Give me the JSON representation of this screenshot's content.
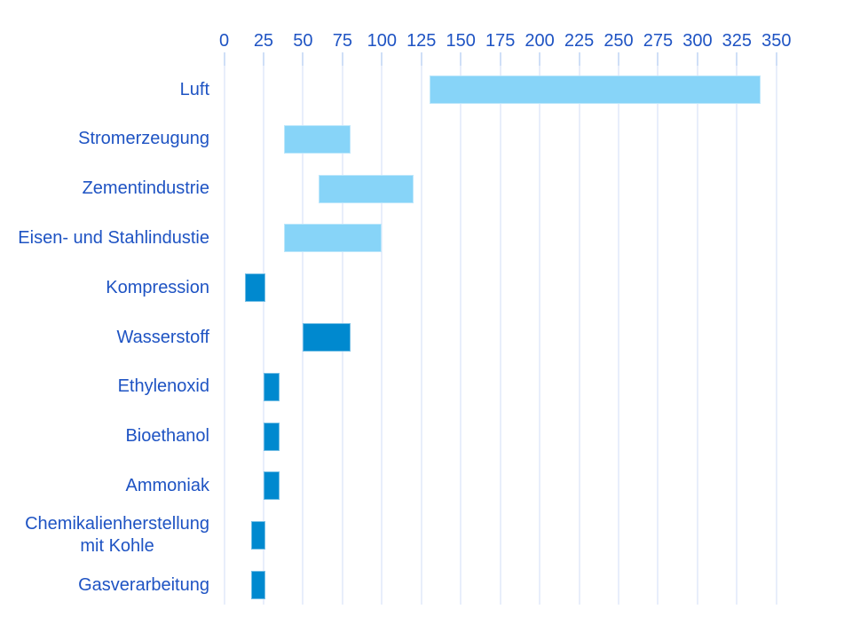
{
  "chart_data": {
    "type": "bar",
    "subtype": "range",
    "orientation": "horizontal",
    "title": "",
    "xlabel": "",
    "ylabel": "",
    "grid": true,
    "legend": "none",
    "x_axis": {
      "position": "top",
      "min": 0,
      "max": 350,
      "tick_step": 25,
      "ticks": [
        0,
        25,
        50,
        75,
        100,
        125,
        150,
        175,
        200,
        225,
        250,
        275,
        300,
        325,
        350
      ]
    },
    "categories": [
      "Luft",
      "Stromerzeugung",
      "Zementindustrie",
      "Eisen- und Stahlindustie",
      "Kompression",
      "Wasserstoff",
      "Ethylenoxid",
      "Bioethanol",
      "Ammoniak",
      "Chemikalienherstellung mit Kohle",
      "Gasverarbeitung"
    ],
    "rows": [
      {
        "label": "Luft",
        "range": [
          130,
          340
        ],
        "color": "light"
      },
      {
        "label": "Stromerzeugung",
        "range": [
          38,
          80
        ],
        "color": "light"
      },
      {
        "label": "Zementindustrie",
        "range": [
          60,
          120
        ],
        "color": "light"
      },
      {
        "label": "Eisen- und Stahlindustie",
        "range": [
          38,
          100
        ],
        "color": "light"
      },
      {
        "label": "Kompression",
        "range": [
          13,
          26
        ],
        "color": "dark"
      },
      {
        "label": "Wasserstoff",
        "range": [
          50,
          80
        ],
        "color": "dark"
      },
      {
        "label": "Ethylenoxid",
        "range": [
          25,
          35
        ],
        "color": "dark"
      },
      {
        "label": "Bioethanol",
        "range": [
          25,
          35
        ],
        "color": "dark"
      },
      {
        "label": "Ammoniak",
        "range": [
          25,
          35
        ],
        "color": "dark"
      },
      {
        "label": "Chemikalienherstellung\nmit Kohle",
        "range": [
          17,
          26
        ],
        "color": "dark"
      },
      {
        "label": "Gasverarbeitung",
        "range": [
          17,
          26
        ],
        "color": "dark"
      }
    ],
    "colors": {
      "light_bar": "#87d4f8",
      "dark_bar": "#0089cf",
      "label_text": "#1e53c3",
      "gridline": "#e8eefb",
      "tickmark": "#cfdff7",
      "background": "#ffffff"
    }
  }
}
